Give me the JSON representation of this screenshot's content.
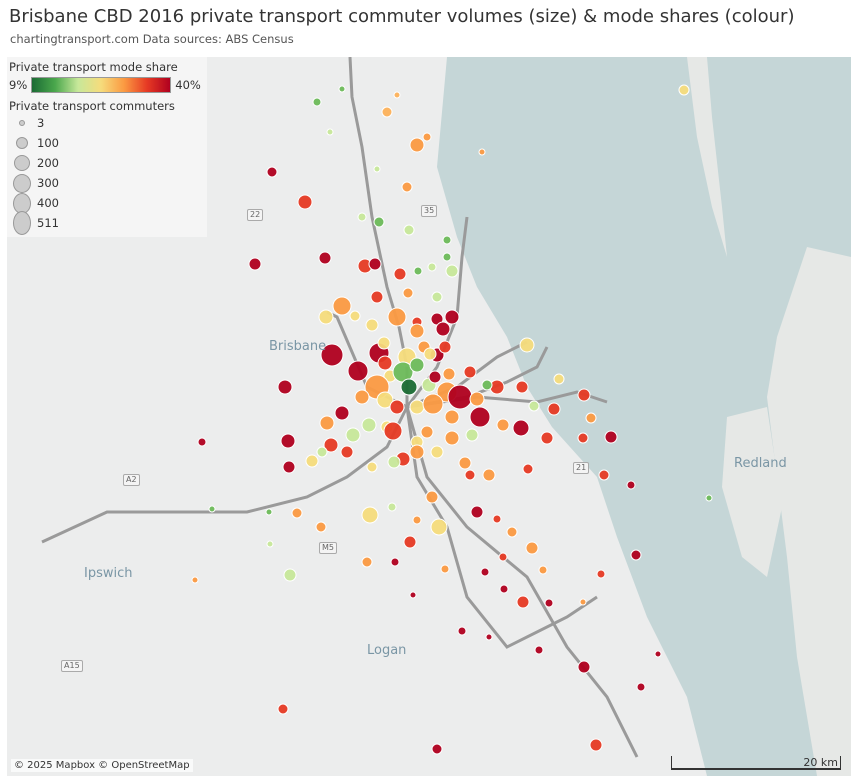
{
  "title": "Brisbane CBD 2016 private transport commuter volumes (size) & mode shares (colour)",
  "subtitle": "chartingtransport.com  Data sources: ABS Census",
  "legend": {
    "color_title": "Private transport mode share",
    "color_min": "9%",
    "color_max": "40%",
    "size_title": "Private transport commuters",
    "sizes": [
      "3",
      "100",
      "200",
      "300",
      "400",
      "511"
    ]
  },
  "places": [
    "Brisbane",
    "Redland",
    "Ipswich",
    "Logan"
  ],
  "roads": [
    "22",
    "A2",
    "M5",
    "21",
    "A15",
    "35"
  ],
  "credit": "© 2025 Mapbox © OpenStreetMap",
  "scale": "20 km",
  "colors": {
    "low": "#1b6b34",
    "mid": "#f6dc7c",
    "high": "#b0001f",
    "water": "#c5d6d7",
    "land": "#eceded"
  }
}
